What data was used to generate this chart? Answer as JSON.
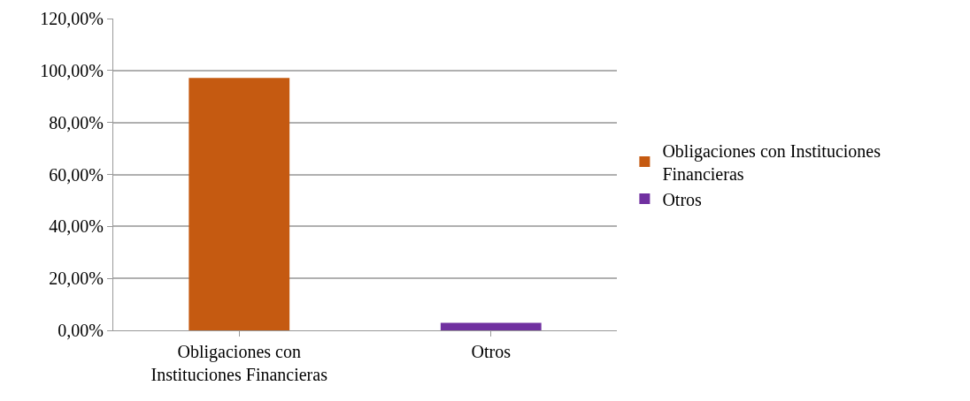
{
  "chart_data": {
    "type": "bar",
    "categories": [
      "Obligaciones con Instituciones Financieras",
      "Otros"
    ],
    "series": [
      {
        "name": "Obligaciones con Instituciones Financieras",
        "color": "#c55a11",
        "values": [
          97.1,
          null
        ]
      },
      {
        "name": "Otros",
        "color": "#7030a0",
        "values": [
          null,
          2.9
        ]
      }
    ],
    "ylim": [
      0,
      120
    ],
    "yticks": [
      {
        "value": 0,
        "label": "0,00%"
      },
      {
        "value": 20,
        "label": "20,00%"
      },
      {
        "value": 40,
        "label": "40,00%"
      },
      {
        "value": 60,
        "label": "60,00%"
      },
      {
        "value": 80,
        "label": "80,00%"
      },
      {
        "value": 100,
        "label": "100,00%"
      },
      {
        "value": 120,
        "label": "120,00%"
      }
    ],
    "grid": "y",
    "legend": "right"
  }
}
